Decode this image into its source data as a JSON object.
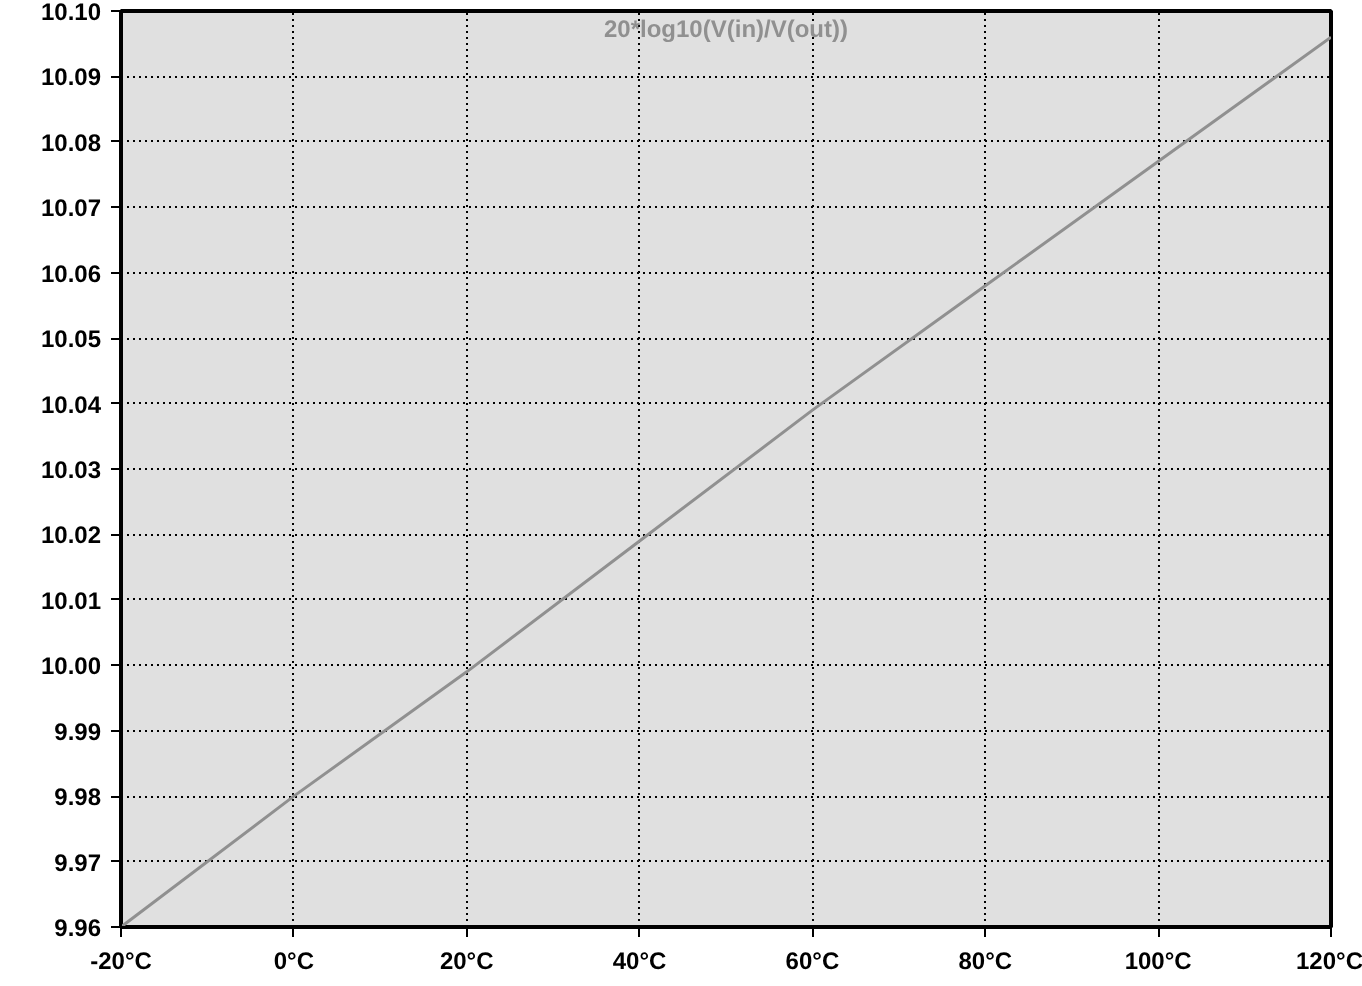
{
  "chart_data": {
    "type": "line",
    "title": "20*log10(V(in)/V(out))",
    "x": [
      -20,
      0,
      20,
      40,
      60,
      80,
      100,
      120
    ],
    "series": [
      {
        "color": "#909090",
        "values": [
          9.96,
          9.98,
          9.999,
          10.019,
          10.039,
          10.058,
          10.077,
          10.096
        ]
      }
    ],
    "xlim": [
      -20,
      120
    ],
    "ylim": [
      9.96,
      10.1
    ],
    "xticks": [
      {
        "value": -20,
        "label": "-20°C"
      },
      {
        "value": 0,
        "label": "0°C"
      },
      {
        "value": 20,
        "label": "20°C"
      },
      {
        "value": 40,
        "label": "40°C"
      },
      {
        "value": 60,
        "label": "60°C"
      },
      {
        "value": 80,
        "label": "80°C"
      },
      {
        "value": 100,
        "label": "100°C"
      },
      {
        "value": 120,
        "label": "120°C"
      }
    ],
    "yticks": [
      {
        "value": 9.96,
        "label": "9.96"
      },
      {
        "value": 9.97,
        "label": "9.97"
      },
      {
        "value": 9.98,
        "label": "9.98"
      },
      {
        "value": 9.99,
        "label": "9.99"
      },
      {
        "value": 10.0,
        "label": "10.00"
      },
      {
        "value": 10.01,
        "label": "10.01"
      },
      {
        "value": 10.02,
        "label": "10.02"
      },
      {
        "value": 10.03,
        "label": "10.03"
      },
      {
        "value": 10.04,
        "label": "10.04"
      },
      {
        "value": 10.05,
        "label": "10.05"
      },
      {
        "value": 10.06,
        "label": "10.06"
      },
      {
        "value": 10.07,
        "label": "10.07"
      },
      {
        "value": 10.08,
        "label": "10.08"
      },
      {
        "value": 10.09,
        "label": "10.09"
      },
      {
        "value": 10.1,
        "label": "10.10"
      }
    ],
    "grid": true,
    "marker": "none",
    "line_style": "solid"
  }
}
